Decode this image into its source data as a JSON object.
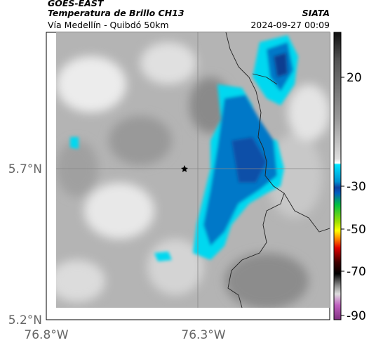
{
  "header": {
    "title": "GOES-EAST",
    "subtitle": "Temperatura de Brillo CH13",
    "location": "Vía Medellín - Quibdó 50km",
    "source": "SIATA",
    "timestamp": "2024-09-27 00:09"
  },
  "map": {
    "lat_labels": [
      "5.7°N",
      "5.2°N"
    ],
    "lon_labels": [
      "76.8°W",
      "76.3°W"
    ]
  },
  "colorbar": {
    "ticks": [
      20,
      -30,
      -50,
      -70,
      -90
    ]
  }
}
